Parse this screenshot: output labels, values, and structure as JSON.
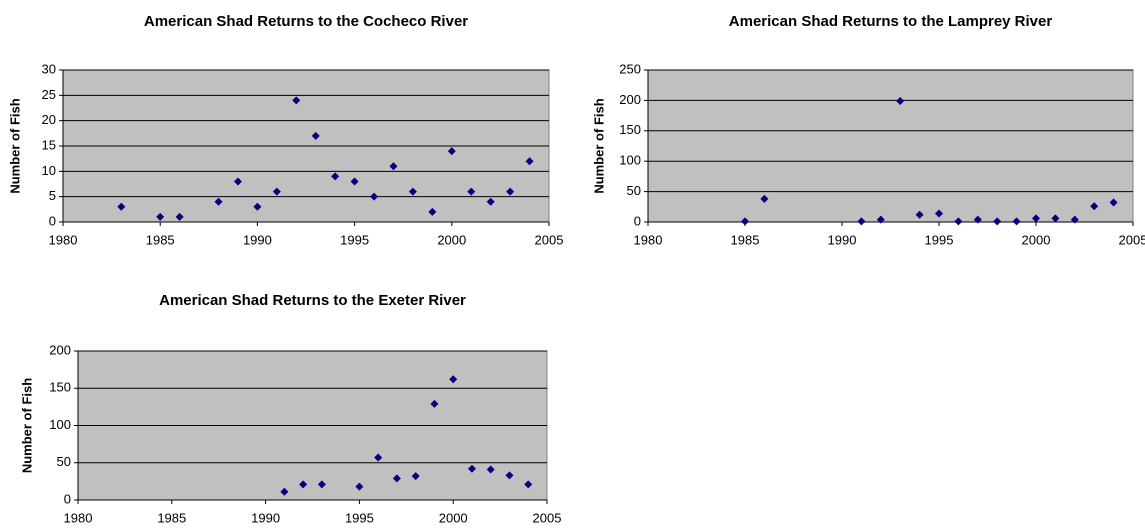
{
  "chart_data": [
    {
      "type": "scatter",
      "title": "American Shad Returns to the Cocheco River",
      "y_label": "Number of Fish",
      "x": [
        1983,
        1985,
        1986,
        1988,
        1989,
        1990,
        1991,
        1992,
        1993,
        1994,
        1995,
        1996,
        1997,
        1998,
        1999,
        2000,
        2001,
        2002,
        2003,
        2004
      ],
      "values": [
        3,
        1,
        1,
        4,
        8,
        3,
        6,
        24,
        17,
        9,
        8,
        5,
        11,
        6,
        2,
        14,
        6,
        4,
        6,
        12
      ],
      "color": "#000080",
      "xlim": [
        1980,
        2005
      ],
      "ylim": [
        0,
        30
      ],
      "xticks": [
        1980,
        1985,
        1990,
        1995,
        2000,
        2005
      ],
      "yticks": [
        0,
        5,
        10,
        15,
        20,
        25,
        30
      ],
      "grid": true
    },
    {
      "type": "scatter",
      "title": "American Shad Returns to the Lamprey River",
      "y_label": "Number of Fish",
      "x": [
        1985,
        1986,
        1991,
        1992,
        1993,
        1994,
        1995,
        1996,
        1997,
        1998,
        1999,
        2000,
        2001,
        2002,
        2003,
        2004
      ],
      "values": [
        1,
        38,
        1,
        4,
        199,
        12,
        14,
        1,
        4,
        1,
        1,
        6,
        6,
        4,
        26,
        32
      ],
      "color": "#000080",
      "xlim": [
        1980,
        2005
      ],
      "ylim": [
        0,
        250
      ],
      "xticks": [
        1980,
        1985,
        1990,
        1995,
        2000,
        2005
      ],
      "yticks": [
        0,
        50,
        100,
        150,
        200,
        250
      ],
      "grid": true
    },
    {
      "type": "scatter",
      "title": "American Shad Returns to the Exeter River",
      "y_label": "Number of Fish",
      "x": [
        1991,
        1992,
        1993,
        1995,
        1996,
        1997,
        1998,
        1999,
        2000,
        2001,
        2002,
        2003,
        2004
      ],
      "values": [
        11,
        21,
        21,
        18,
        57,
        29,
        32,
        129,
        162,
        42,
        41,
        33,
        21
      ],
      "color": "#000080",
      "xlim": [
        1980,
        2005
      ],
      "ylim": [
        0,
        200
      ],
      "xticks": [
        1980,
        1985,
        1990,
        1995,
        2000,
        2005
      ],
      "yticks": [
        0,
        50,
        100,
        150,
        200
      ],
      "grid": true
    }
  ]
}
